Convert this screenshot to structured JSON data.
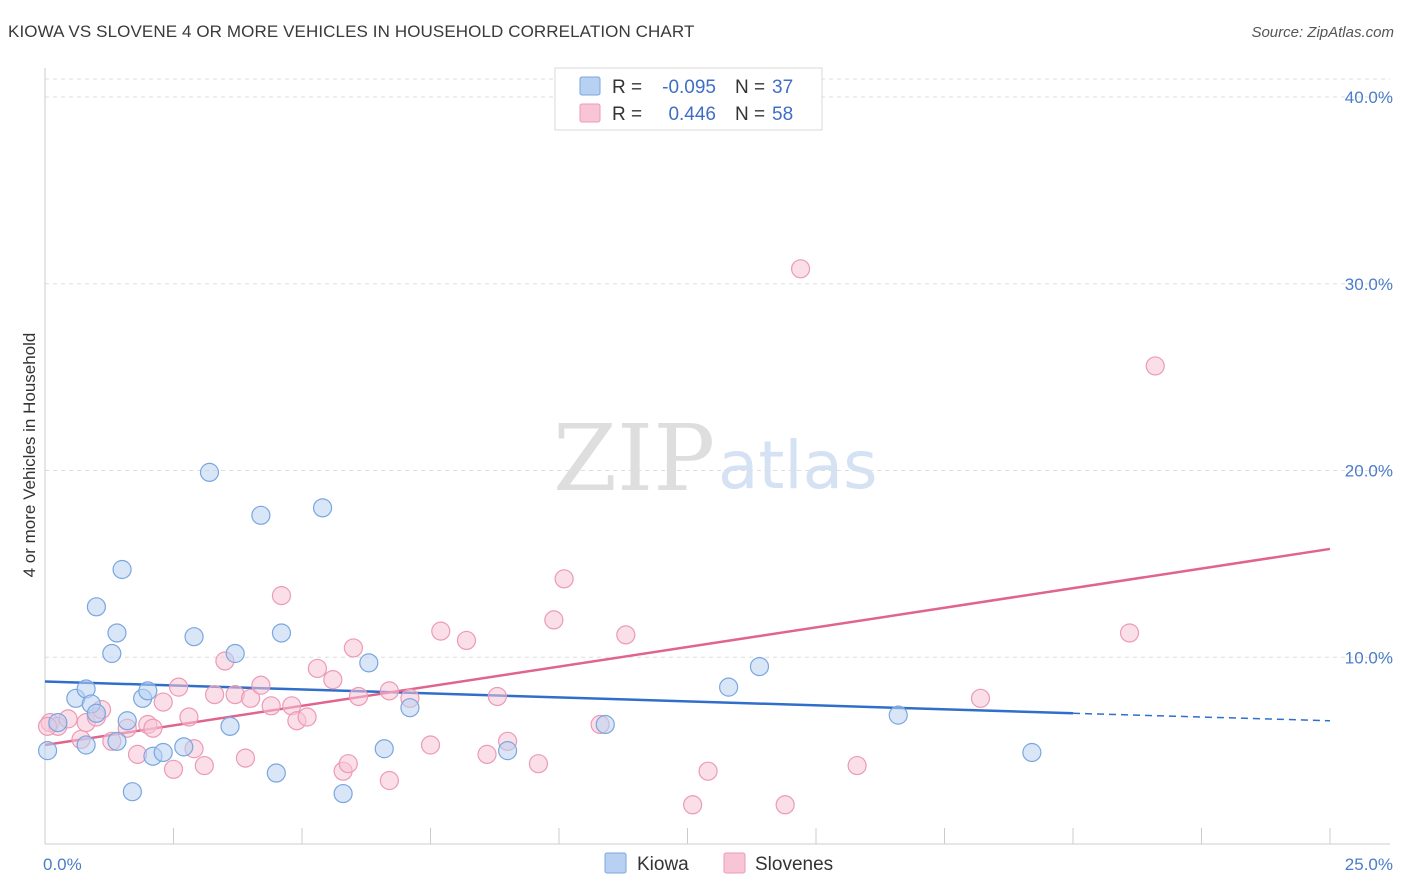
{
  "header": {
    "title": "KIOWA VS SLOVENE 4 OR MORE VEHICLES IN HOUSEHOLD CORRELATION CHART",
    "source": "Source: ZipAtlas.com"
  },
  "watermark": {
    "zip": "ZIP",
    "atlas": "atlas"
  },
  "colors": {
    "kiowa_fill": "#b8d1f2",
    "kiowa_stroke": "#7aa6df",
    "kiowa_line": "#2f6fca",
    "slovenes_fill": "#f7c5d5",
    "slovenes_stroke": "#ec9ab5",
    "slovenes_line": "#e0648e",
    "grid": "#dddddd",
    "tick_text": "#4a7cc9"
  },
  "legend": {
    "rows": [
      {
        "r_label": "R =",
        "r_value": "-0.095",
        "n_label": "N =",
        "n_value": "37"
      },
      {
        "r_label": "R =",
        "r_value": "0.446",
        "n_label": "N =",
        "n_value": "58"
      }
    ]
  },
  "chart_data": {
    "type": "scatter",
    "title": "KIOWA VS SLOVENE 4 OR MORE VEHICLES IN HOUSEHOLD CORRELATION CHART",
    "xlabel": "",
    "ylabel": "4 or more Vehicles in Household",
    "xlim": [
      0,
      25
    ],
    "ylim": [
      0,
      40
    ],
    "x_tick_labels": [
      "0.0%",
      "25.0%"
    ],
    "y_ticks": [
      10,
      20,
      30,
      40
    ],
    "y_tick_labels": [
      "10.0%",
      "20.0%",
      "30.0%",
      "40.0%"
    ],
    "grid": true,
    "legend_position": "top-center",
    "series": [
      {
        "name": "Kiowa",
        "r": -0.095,
        "n": 37,
        "trend": {
          "x0": 0,
          "y0": 8.7,
          "x1": 20,
          "y1": 7.0,
          "dash_to_x": 25,
          "dash_to_y": 6.6
        },
        "points": [
          [
            0.05,
            5.0
          ],
          [
            0.25,
            6.5
          ],
          [
            0.6,
            7.8
          ],
          [
            0.8,
            8.3
          ],
          [
            0.9,
            7.5
          ],
          [
            1.0,
            7.0
          ],
          [
            0.8,
            5.3
          ],
          [
            1.0,
            12.7
          ],
          [
            1.3,
            10.2
          ],
          [
            1.4,
            5.5
          ],
          [
            1.4,
            11.3
          ],
          [
            1.6,
            6.6
          ],
          [
            1.5,
            14.7
          ],
          [
            1.7,
            2.8
          ],
          [
            1.9,
            7.8
          ],
          [
            2.0,
            8.2
          ],
          [
            2.1,
            4.7
          ],
          [
            2.3,
            4.9
          ],
          [
            2.7,
            5.2
          ],
          [
            2.9,
            11.1
          ],
          [
            3.2,
            19.9
          ],
          [
            3.6,
            6.3
          ],
          [
            3.7,
            10.2
          ],
          [
            4.2,
            17.6
          ],
          [
            4.5,
            3.8
          ],
          [
            4.6,
            11.3
          ],
          [
            5.4,
            18.0
          ],
          [
            5.8,
            2.7
          ],
          [
            6.3,
            9.7
          ],
          [
            6.6,
            5.1
          ],
          [
            7.1,
            7.3
          ],
          [
            9.0,
            5.0
          ],
          [
            10.9,
            6.4
          ],
          [
            13.3,
            8.4
          ],
          [
            13.9,
            9.5
          ],
          [
            16.6,
            6.9
          ],
          [
            19.2,
            4.9
          ]
        ]
      },
      {
        "name": "Slovenes",
        "r": 0.446,
        "n": 58,
        "trend": {
          "x0": 0,
          "y0": 5.3,
          "x1": 25,
          "y1": 15.8
        },
        "points": [
          [
            0.1,
            6.5
          ],
          [
            0.25,
            6.3
          ],
          [
            0.45,
            6.7
          ],
          [
            0.7,
            5.6
          ],
          [
            0.8,
            6.5
          ],
          [
            1.0,
            6.8
          ],
          [
            1.1,
            7.2
          ],
          [
            1.3,
            5.5
          ],
          [
            1.6,
            6.2
          ],
          [
            1.8,
            4.8
          ],
          [
            2.0,
            6.4
          ],
          [
            2.1,
            6.2
          ],
          [
            2.3,
            7.6
          ],
          [
            2.5,
            4.0
          ],
          [
            2.6,
            8.4
          ],
          [
            2.8,
            6.8
          ],
          [
            2.9,
            5.1
          ],
          [
            3.1,
            4.2
          ],
          [
            3.3,
            8.0
          ],
          [
            3.5,
            9.8
          ],
          [
            3.7,
            8.0
          ],
          [
            3.9,
            4.6
          ],
          [
            4.0,
            7.8
          ],
          [
            4.2,
            8.5
          ],
          [
            4.4,
            7.4
          ],
          [
            4.6,
            13.3
          ],
          [
            4.8,
            7.4
          ],
          [
            4.9,
            6.6
          ],
          [
            5.1,
            6.8
          ],
          [
            5.3,
            9.4
          ],
          [
            5.6,
            8.8
          ],
          [
            5.8,
            3.9
          ],
          [
            5.9,
            4.3
          ],
          [
            6.0,
            10.5
          ],
          [
            6.1,
            7.9
          ],
          [
            6.7,
            8.2
          ],
          [
            6.7,
            3.4
          ],
          [
            7.1,
            7.8
          ],
          [
            7.5,
            5.3
          ],
          [
            7.7,
            11.4
          ],
          [
            8.2,
            10.9
          ],
          [
            8.6,
            4.8
          ],
          [
            8.8,
            7.9
          ],
          [
            9.0,
            5.5
          ],
          [
            9.6,
            4.3
          ],
          [
            9.9,
            12.0
          ],
          [
            10.1,
            14.2
          ],
          [
            10.8,
            6.4
          ],
          [
            11.3,
            11.2
          ],
          [
            12.6,
            2.1
          ],
          [
            12.9,
            3.9
          ],
          [
            14.4,
            2.1
          ],
          [
            14.7,
            30.8
          ],
          [
            15.8,
            4.2
          ],
          [
            18.2,
            7.8
          ],
          [
            21.1,
            11.3
          ],
          [
            21.6,
            25.6
          ],
          [
            0.05,
            6.3
          ]
        ]
      }
    ]
  },
  "bottom_legend": [
    {
      "label": "Kiowa"
    },
    {
      "label": "Slovenes"
    }
  ]
}
